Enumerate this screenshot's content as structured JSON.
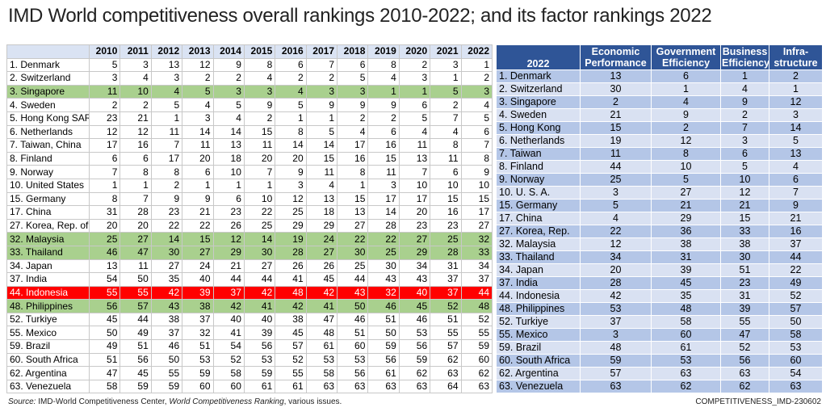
{
  "title": "IMD World competitiveness overall rankings 2010-2022; and its factor rankings 2022",
  "left_table": {
    "columns": [
      2010,
      2011,
      2012,
      2013,
      2014,
      2015,
      2016,
      2017,
      2018,
      2019,
      2020,
      2021,
      2022
    ],
    "highlights": [
      {
        "color": "#a9d08e",
        "text_color": "#000000",
        "rows": [
          2,
          13,
          14,
          18
        ]
      },
      {
        "color": "#ff0000",
        "text_color": "#ffffff",
        "rows": [
          17
        ]
      }
    ],
    "rows": [
      {
        "label": "1. Denmark",
        "values": [
          5,
          3,
          13,
          12,
          9,
          8,
          6,
          7,
          6,
          8,
          2,
          3,
          1
        ]
      },
      {
        "label": "2. Switzerland",
        "values": [
          3,
          4,
          3,
          2,
          2,
          4,
          2,
          2,
          5,
          4,
          3,
          1,
          2
        ]
      },
      {
        "label": "3. Singapore",
        "values": [
          11,
          10,
          4,
          5,
          3,
          3,
          4,
          3,
          3,
          1,
          1,
          5,
          3
        ]
      },
      {
        "label": "4. Sweden",
        "values": [
          2,
          2,
          5,
          4,
          5,
          9,
          5,
          9,
          9,
          9,
          6,
          2,
          4
        ]
      },
      {
        "label": "5. Hong Kong SAR",
        "values": [
          23,
          21,
          1,
          3,
          4,
          2,
          1,
          1,
          2,
          2,
          5,
          7,
          5
        ]
      },
      {
        "label": "6. Netherlands",
        "values": [
          12,
          12,
          11,
          14,
          14,
          15,
          8,
          5,
          4,
          6,
          4,
          4,
          6
        ]
      },
      {
        "label": "7. Taiwan, China",
        "values": [
          17,
          16,
          7,
          11,
          13,
          11,
          14,
          14,
          17,
          16,
          11,
          8,
          7
        ]
      },
      {
        "label": "8. Finland",
        "values": [
          6,
          6,
          17,
          20,
          18,
          20,
          20,
          15,
          16,
          15,
          13,
          11,
          8
        ]
      },
      {
        "label": "9. Norway",
        "values": [
          7,
          8,
          8,
          6,
          10,
          7,
          9,
          11,
          8,
          11,
          7,
          6,
          9
        ]
      },
      {
        "label": "10. United States",
        "values": [
          1,
          1,
          2,
          1,
          1,
          1,
          3,
          4,
          1,
          3,
          10,
          10,
          10
        ]
      },
      {
        "label": "15. Germany",
        "values": [
          8,
          7,
          9,
          9,
          6,
          10,
          12,
          13,
          15,
          17,
          17,
          15,
          15
        ]
      },
      {
        "label": "17. China",
        "values": [
          31,
          28,
          23,
          21,
          23,
          22,
          25,
          18,
          13,
          14,
          20,
          16,
          17
        ]
      },
      {
        "label": "27. Korea, Rep. of",
        "values": [
          20,
          20,
          22,
          22,
          26,
          25,
          29,
          29,
          27,
          28,
          23,
          23,
          27
        ]
      },
      {
        "label": "32. Malaysia",
        "values": [
          25,
          27,
          14,
          15,
          12,
          14,
          19,
          24,
          22,
          22,
          27,
          25,
          32
        ]
      },
      {
        "label": "33. Thailand",
        "values": [
          46,
          47,
          30,
          27,
          29,
          30,
          28,
          27,
          30,
          25,
          29,
          28,
          33
        ]
      },
      {
        "label": "34. Japan",
        "values": [
          13,
          11,
          27,
          24,
          21,
          27,
          26,
          26,
          25,
          30,
          34,
          31,
          34
        ]
      },
      {
        "label": "37. India",
        "values": [
          54,
          50,
          35,
          40,
          44,
          44,
          41,
          45,
          44,
          43,
          43,
          37,
          37
        ]
      },
      {
        "label": "44. Indonesia",
        "values": [
          55,
          55,
          42,
          39,
          37,
          42,
          48,
          42,
          43,
          32,
          40,
          37,
          44
        ]
      },
      {
        "label": "48. Philippines",
        "values": [
          56,
          57,
          43,
          38,
          42,
          41,
          42,
          41,
          50,
          46,
          45,
          52,
          48
        ]
      },
      {
        "label": "52. Turkiye",
        "values": [
          45,
          44,
          38,
          37,
          40,
          40,
          38,
          47,
          46,
          51,
          46,
          51,
          52
        ]
      },
      {
        "label": "55. Mexico",
        "values": [
          50,
          49,
          37,
          32,
          41,
          39,
          45,
          48,
          51,
          50,
          53,
          55,
          55
        ]
      },
      {
        "label": "59. Brazil",
        "values": [
          49,
          51,
          46,
          51,
          54,
          56,
          57,
          61,
          60,
          59,
          56,
          57,
          59
        ]
      },
      {
        "label": "60. South Africa",
        "values": [
          51,
          56,
          50,
          53,
          52,
          53,
          52,
          53,
          53,
          56,
          59,
          62,
          60
        ]
      },
      {
        "label": "62. Argentina",
        "values": [
          47,
          45,
          55,
          59,
          58,
          59,
          55,
          58,
          56,
          61,
          62,
          63,
          62
        ]
      },
      {
        "label": "63. Venezuela",
        "values": [
          58,
          59,
          59,
          60,
          60,
          61,
          61,
          63,
          63,
          63,
          63,
          64,
          63
        ]
      }
    ]
  },
  "right_table": {
    "header": "2022",
    "columns": [
      "Economic Performance",
      "Government Efficiency",
      "Business Efficiency",
      "Infra-structure"
    ],
    "rows": [
      {
        "label": "1. Denmark",
        "values": [
          13,
          6,
          1,
          2
        ]
      },
      {
        "label": "2. Switzerland",
        "values": [
          30,
          1,
          4,
          1
        ]
      },
      {
        "label": "3. Singapore",
        "values": [
          2,
          4,
          9,
          12
        ]
      },
      {
        "label": "4. Sweden",
        "values": [
          21,
          9,
          2,
          3
        ]
      },
      {
        "label": "5. Hong Kong",
        "values": [
          15,
          2,
          7,
          14
        ]
      },
      {
        "label": "6. Netherlands",
        "values": [
          19,
          12,
          3,
          5
        ]
      },
      {
        "label": "7. Taiwan",
        "values": [
          11,
          8,
          6,
          13
        ]
      },
      {
        "label": "8. Finland",
        "values": [
          44,
          10,
          5,
          4
        ]
      },
      {
        "label": "9. Norway",
        "values": [
          25,
          5,
          10,
          6
        ]
      },
      {
        "label": "10. U. S. A.",
        "values": [
          3,
          27,
          12,
          7
        ]
      },
      {
        "label": "15. Germany",
        "values": [
          5,
          21,
          21,
          9
        ]
      },
      {
        "label": "17. China",
        "values": [
          4,
          29,
          15,
          21
        ]
      },
      {
        "label": "27. Korea, Rep.",
        "values": [
          22,
          36,
          33,
          16
        ]
      },
      {
        "label": "32. Malaysia",
        "values": [
          12,
          38,
          38,
          37
        ]
      },
      {
        "label": "33. Thailand",
        "values": [
          34,
          31,
          30,
          44
        ]
      },
      {
        "label": "34. Japan",
        "values": [
          20,
          39,
          51,
          22
        ]
      },
      {
        "label": "37. India",
        "values": [
          28,
          45,
          23,
          49
        ]
      },
      {
        "label": "44. Indonesia",
        "values": [
          42,
          35,
          31,
          52
        ]
      },
      {
        "label": "48. Philippines",
        "values": [
          53,
          48,
          39,
          57
        ]
      },
      {
        "label": "52. Turkiye",
        "values": [
          37,
          58,
          55,
          50
        ]
      },
      {
        "label": "55. Mexico",
        "values": [
          3,
          60,
          47,
          58
        ]
      },
      {
        "label": "59. Brazil",
        "values": [
          48,
          61,
          52,
          53
        ]
      },
      {
        "label": "60. South Africa",
        "values": [
          59,
          53,
          56,
          60
        ]
      },
      {
        "label": "62. Argentina",
        "values": [
          57,
          63,
          63,
          54
        ]
      },
      {
        "label": "63. Venezuela",
        "values": [
          63,
          62,
          62,
          63
        ]
      }
    ]
  },
  "source": {
    "label": "Source:",
    "text": " IMD-World Competitiveness Center, ",
    "work": "World Competitiveness Ranking",
    "rest": ", various issues."
  },
  "code": "COMPETITIVENESS_IMD-230602"
}
